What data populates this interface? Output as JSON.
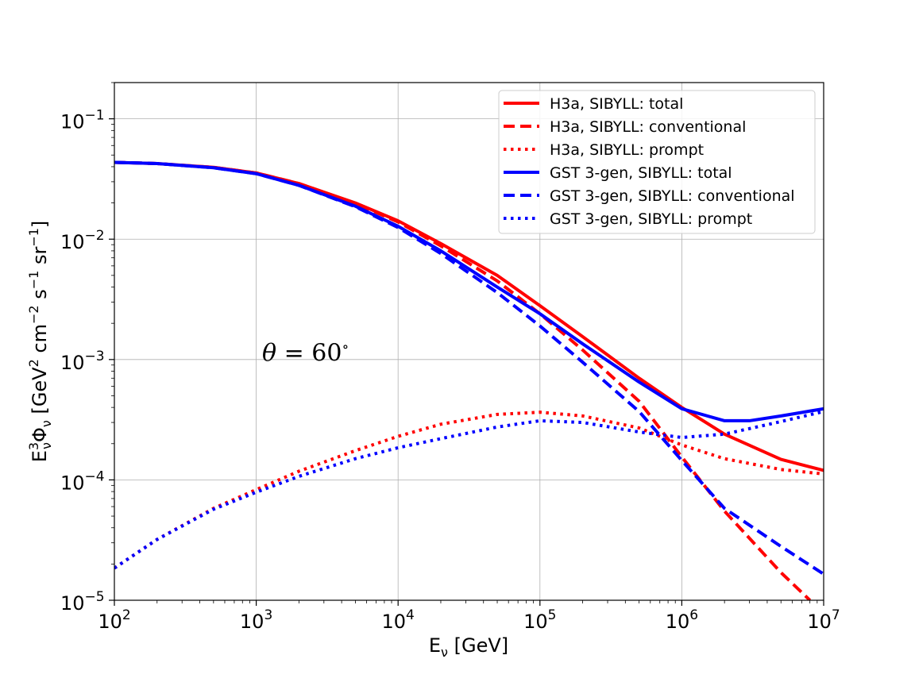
{
  "chart_data": {
    "type": "line",
    "xscale": "log",
    "yscale": "log",
    "xlim": [
      100,
      10000000
    ],
    "ylim": [
      1e-05,
      0.2
    ],
    "x_ticks": [
      {
        "value": 100,
        "base": "10",
        "exp": "2"
      },
      {
        "value": 1000,
        "base": "10",
        "exp": "3"
      },
      {
        "value": 10000,
        "base": "10",
        "exp": "4"
      },
      {
        "value": 100000,
        "base": "10",
        "exp": "5"
      },
      {
        "value": 1000000,
        "base": "10",
        "exp": "6"
      },
      {
        "value": 10000000,
        "base": "10",
        "exp": "7"
      }
    ],
    "y_ticks": [
      {
        "value": 0.1,
        "base": "10",
        "exp": "−1"
      },
      {
        "value": 0.01,
        "base": "10",
        "exp": "−2"
      },
      {
        "value": 0.001,
        "base": "10",
        "exp": "−3"
      },
      {
        "value": 0.0001,
        "base": "10",
        "exp": "−4"
      },
      {
        "value": 1e-05,
        "base": "10",
        "exp": "−5"
      }
    ],
    "xlabel": {
      "main": "E",
      "sub": "ν",
      "unit": " [GeV]"
    },
    "ylabel": {
      "p1": "E",
      "p1_sup": "3",
      "p1_sub": "ν",
      "p2": "Φ",
      "p2_sub": "ν",
      "p3": " [GeV",
      "p3_sup": "2",
      "p4": " cm",
      "p4_sup": "−2",
      "p5": " s",
      "p5_sup": "−1",
      "p6": " sr",
      "p6_sup": "−1",
      "p7": "]"
    },
    "annotation": {
      "symbol": "θ",
      "text": " = 60",
      "degree": "∘",
      "x": 1100,
      "y": 0.00115
    },
    "grid": true,
    "legend_position": "upper right",
    "colors": {
      "red": "#ff0000",
      "blue": "#0000ff"
    },
    "series": [
      {
        "name": "H3a, SIBYLL: total",
        "color": "#ff0000",
        "style": "solid",
        "points": [
          [
            100,
            0.0435
          ],
          [
            200,
            0.0425
          ],
          [
            500,
            0.0395
          ],
          [
            1000,
            0.0355
          ],
          [
            2000,
            0.029
          ],
          [
            5000,
            0.02
          ],
          [
            10000,
            0.0142
          ],
          [
            20000,
            0.0092
          ],
          [
            50000,
            0.005
          ],
          [
            100000,
            0.0028
          ],
          [
            200000,
            0.00155
          ],
          [
            500000,
            0.0007
          ],
          [
            1000000,
            0.0004
          ],
          [
            2000000,
            0.00024
          ],
          [
            5000000,
            0.000148
          ],
          [
            10000000,
            0.00012
          ]
        ]
      },
      {
        "name": "H3a, SIBYLL: conventional",
        "color": "#ff0000",
        "style": "dashed",
        "points": [
          [
            100,
            0.0435
          ],
          [
            200,
            0.0425
          ],
          [
            500,
            0.0395
          ],
          [
            1000,
            0.0355
          ],
          [
            2000,
            0.029
          ],
          [
            5000,
            0.0198
          ],
          [
            10000,
            0.0139
          ],
          [
            20000,
            0.0088
          ],
          [
            50000,
            0.0045
          ],
          [
            100000,
            0.0024
          ],
          [
            200000,
            0.0012
          ],
          [
            500000,
            0.00045
          ],
          [
            1000000,
            0.000155
          ],
          [
            2000000,
            5.5e-05
          ],
          [
            5000000,
            1.7e-05
          ],
          [
            8000000,
            1e-05
          ]
        ]
      },
      {
        "name": "H3a, SIBYLL: prompt",
        "color": "#ff0000",
        "style": "dotted",
        "points": [
          [
            100,
            1.85e-05
          ],
          [
            200,
            3.2e-05
          ],
          [
            500,
            5.8e-05
          ],
          [
            1000,
            8.3e-05
          ],
          [
            2000,
            0.000118
          ],
          [
            5000,
            0.000175
          ],
          [
            10000,
            0.00023
          ],
          [
            20000,
            0.00029
          ],
          [
            50000,
            0.00035
          ],
          [
            100000,
            0.000365
          ],
          [
            200000,
            0.00034
          ],
          [
            500000,
            0.00027
          ],
          [
            1000000,
            0.000195
          ],
          [
            2000000,
            0.00015
          ],
          [
            5000000,
            0.000122
          ],
          [
            10000000,
            0.000112
          ]
        ]
      },
      {
        "name": "GST 3-gen, SIBYLL: total",
        "color": "#0000ff",
        "style": "solid",
        "points": [
          [
            100,
            0.0435
          ],
          [
            200,
            0.0425
          ],
          [
            500,
            0.0392
          ],
          [
            1000,
            0.035
          ],
          [
            2000,
            0.028
          ],
          [
            5000,
            0.0188
          ],
          [
            10000,
            0.0128
          ],
          [
            20000,
            0.008
          ],
          [
            50000,
            0.004
          ],
          [
            100000,
            0.0024
          ],
          [
            200000,
            0.00135
          ],
          [
            500000,
            0.00065
          ],
          [
            1000000,
            0.00039
          ],
          [
            2000000,
            0.00031
          ],
          [
            3000000,
            0.00031
          ],
          [
            5000000,
            0.00034
          ],
          [
            10000000,
            0.00039
          ]
        ]
      },
      {
        "name": "GST 3-gen, SIBYLL: conventional",
        "color": "#0000ff",
        "style": "dashed",
        "points": [
          [
            100,
            0.0435
          ],
          [
            200,
            0.0425
          ],
          [
            500,
            0.0392
          ],
          [
            1000,
            0.035
          ],
          [
            2000,
            0.028
          ],
          [
            5000,
            0.0186
          ],
          [
            10000,
            0.0125
          ],
          [
            20000,
            0.0076
          ],
          [
            50000,
            0.0036
          ],
          [
            100000,
            0.0019
          ],
          [
            200000,
            0.00095
          ],
          [
            500000,
            0.00037
          ],
          [
            1000000,
            0.000145
          ],
          [
            2000000,
            5.8e-05
          ],
          [
            5000000,
            2.8e-05
          ],
          [
            10000000,
            1.65e-05
          ]
        ]
      },
      {
        "name": "GST 3-gen, SIBYLL: prompt",
        "color": "#0000ff",
        "style": "dotted",
        "points": [
          [
            100,
            1.85e-05
          ],
          [
            200,
            3.2e-05
          ],
          [
            500,
            5.7e-05
          ],
          [
            1000,
            7.9e-05
          ],
          [
            2000,
            0.000107
          ],
          [
            5000,
            0.00015
          ],
          [
            10000,
            0.000185
          ],
          [
            20000,
            0.00022
          ],
          [
            50000,
            0.000275
          ],
          [
            100000,
            0.00031
          ],
          [
            200000,
            0.0003
          ],
          [
            500000,
            0.00025
          ],
          [
            1000000,
            0.000225
          ],
          [
            2000000,
            0.00024
          ],
          [
            5000000,
            0.000305
          ],
          [
            10000000,
            0.00037
          ]
        ]
      }
    ]
  }
}
